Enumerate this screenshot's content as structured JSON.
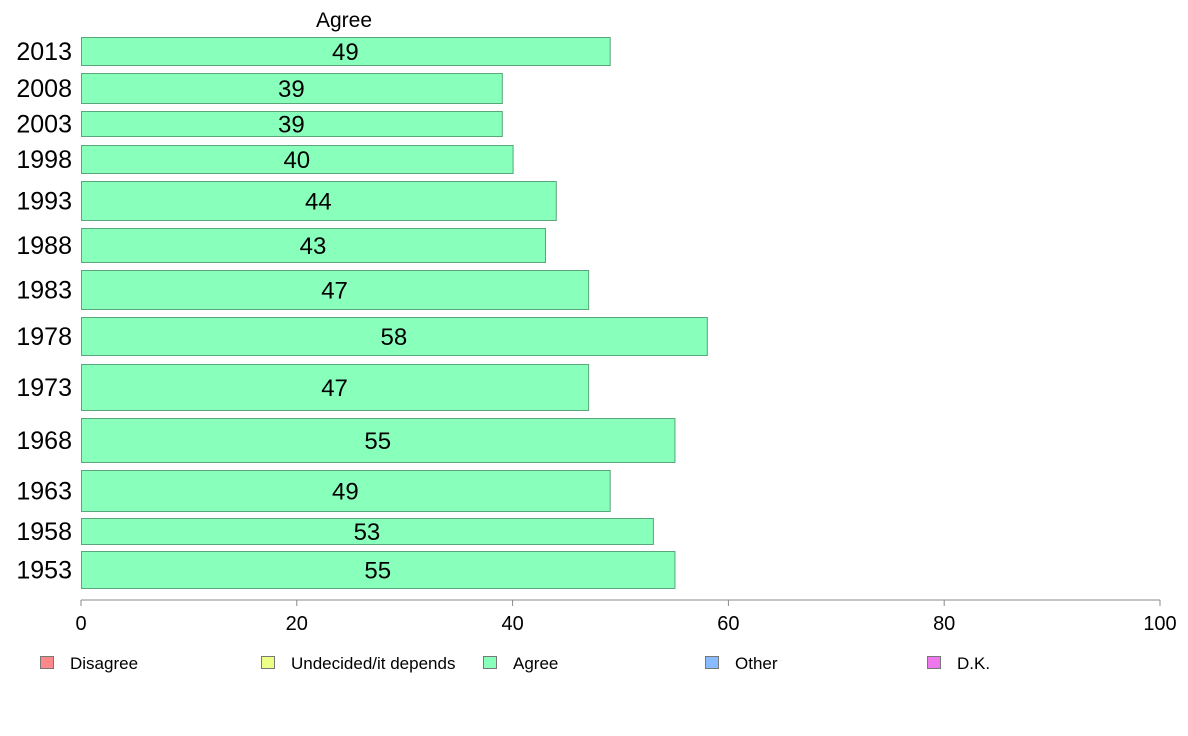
{
  "chart_data": {
    "type": "bar",
    "orientation": "horizontal",
    "title": "Agree",
    "categories": [
      "2013",
      "2008",
      "2003",
      "1998",
      "1993",
      "1988",
      "1983",
      "1978",
      "1973",
      "1968",
      "1963",
      "1958",
      "1953"
    ],
    "series": [
      {
        "name": "Agree",
        "values": [
          49,
          39,
          39,
          40,
          44,
          43,
          47,
          58,
          47,
          55,
          49,
          53,
          55
        ],
        "color": "#88ffbb"
      }
    ],
    "data_labels": [
      "49",
      "39",
      "39",
      "40",
      "44",
      "43",
      "47",
      "58",
      "47",
      "55",
      "49",
      "53",
      "55"
    ],
    "xlim": [
      0,
      100
    ],
    "x_ticks": [
      "0",
      "20",
      "40",
      "60",
      "80",
      "100"
    ],
    "xlabel": "",
    "ylabel": "",
    "grid": false,
    "legend_position": "bottom",
    "legend": [
      {
        "label": "Disagree",
        "color": "#ff8888"
      },
      {
        "label": "Undecided/it depends",
        "color": "#eeff88"
      },
      {
        "label": "Agree",
        "color": "#88ffbb"
      },
      {
        "label": "Other",
        "color": "#88bbff"
      },
      {
        "label": "D.K.",
        "color": "#ee77ee"
      }
    ],
    "colors": {
      "bar_fill": "#88ffbb",
      "bar_stroke": "#5aa57a",
      "axis": "#888888"
    }
  }
}
